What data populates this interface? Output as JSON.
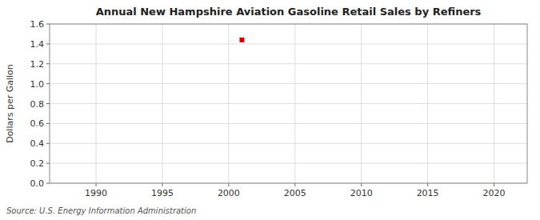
{
  "chart_data": {
    "type": "scatter",
    "title": "Annual New Hampshire Aviation Gasoline Retail Sales by Refiners",
    "ylabel": "Dollars per Gallon",
    "source": "Source: U.S. Energy Information Administration",
    "x": [
      2001
    ],
    "values": [
      1.44
    ],
    "color": "#cc0000",
    "marker": "square",
    "xlim": [
      1986.5,
      2022.5
    ],
    "ylim": [
      0.0,
      1.6
    ],
    "xticks": [
      1990,
      1995,
      2000,
      2005,
      2010,
      2015,
      2020
    ],
    "yticks": [
      {
        "value": 0.0,
        "label": "0.0"
      },
      0.2,
      0.4,
      0.6,
      0.8,
      {
        "value": 1.0,
        "label": "1.0"
      },
      1.2,
      1.4,
      1.6
    ],
    "grid": true
  }
}
